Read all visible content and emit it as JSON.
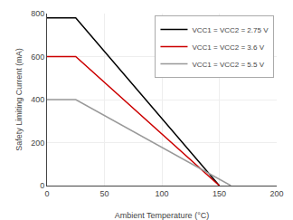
{
  "chart_data": {
    "type": "line",
    "xlabel": "Ambient Temperature (°C)",
    "ylabel": "Safety Limiting Current (mA)",
    "xlim": [
      0,
      200
    ],
    "ylim": [
      0,
      800
    ],
    "xticks": [
      0,
      50,
      100,
      150,
      200
    ],
    "yticks": [
      0,
      200,
      400,
      600,
      800
    ],
    "series": [
      {
        "name": "VCC1 = VCC2 = 2.75 V",
        "color": "#000000",
        "x": [
          0,
          25,
          150
        ],
        "values": [
          780,
          780,
          0
        ]
      },
      {
        "name": "VCC1 = VCC2 = 3.6 V",
        "color": "#cc0000",
        "x": [
          0,
          25,
          150
        ],
        "values": [
          600,
          600,
          0
        ]
      },
      {
        "name": "VCC1 = VCC2 = 5.5 V",
        "color": "#999999",
        "x": [
          0,
          25,
          160
        ],
        "values": [
          400,
          400,
          0
        ]
      }
    ],
    "grid": true,
    "legend": "upper right"
  }
}
